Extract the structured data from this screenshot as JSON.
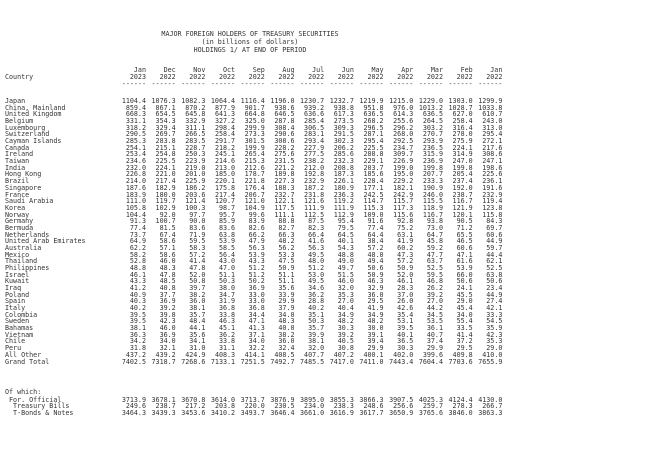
{
  "title": {
    "line1": "MAJOR FOREIGN HOLDERS OF TREASURY SECURITIES",
    "line2": "(in billions of dollars)",
    "line3": "HOLDINGS 1/ AT END OF PERIOD"
  },
  "country_header": "Country",
  "columns": [
    {
      "month": "Jan",
      "year": "2023"
    },
    {
      "month": "Dec",
      "year": "2022"
    },
    {
      "month": "Nov",
      "year": "2022"
    },
    {
      "month": "Oct",
      "year": "2022"
    },
    {
      "month": "Sep",
      "year": "2022"
    },
    {
      "month": "Aug",
      "year": "2022"
    },
    {
      "month": "Jul",
      "year": "2022"
    },
    {
      "month": "Jun",
      "year": "2022"
    },
    {
      "month": "May",
      "year": "2022"
    },
    {
      "month": "Apr",
      "year": "2022"
    },
    {
      "month": "Mar",
      "year": "2022"
    },
    {
      "month": "Feb",
      "year": "2022"
    },
    {
      "month": "Jan",
      "year": "2022"
    }
  ],
  "dash": "------",
  "rows": [
    {
      "country": "Japan",
      "values": [
        "1104.4",
        "1076.3",
        "1082.3",
        "1064.4",
        "1116.4",
        "1196.0",
        "1230.7",
        "1232.7",
        "1219.9",
        "1215.0",
        "1229.0",
        "1303.0",
        "1299.9"
      ]
    },
    {
      "country": "China, Mainland",
      "values": [
        "859.4",
        "867.1",
        "870.2",
        "877.9",
        "901.7",
        "938.6",
        "939.2",
        "938.8",
        "951.8",
        "976.0",
        "1013.2",
        "1028.7",
        "1033.8"
      ]
    },
    {
      "country": "United Kingdom",
      "values": [
        "668.3",
        "654.5",
        "645.8",
        "641.3",
        "664.8",
        "646.5",
        "636.6",
        "617.3",
        "636.5",
        "614.3",
        "636.5",
        "627.0",
        "610.7"
      ]
    },
    {
      "country": "Belgium",
      "values": [
        "331.1",
        "354.3",
        "332.9",
        "327.2",
        "325.0",
        "287.8",
        "285.4",
        "273.5",
        "268.2",
        "255.6",
        "264.5",
        "258.4",
        "243.0"
      ]
    },
    {
      "country": "Luxembourg",
      "values": [
        "318.2",
        "329.4",
        "311.1",
        "298.4",
        "299.9",
        "308.4",
        "306.5",
        "309.3",
        "296.5",
        "296.2",
        "303.2",
        "316.4",
        "313.0"
      ]
    },
    {
      "country": "Switzerland",
      "values": [
        "290.5",
        "269.7",
        "266.5",
        "258.4",
        "273.3",
        "290.6",
        "283.1",
        "291.5",
        "287.1",
        "268.0",
        "270.7",
        "278.0",
        "295.4"
      ]
    },
    {
      "country": "Cayman Islands",
      "values": [
        "285.3",
        "283.8",
        "283.5",
        "291.7",
        "301.5",
        "308.6",
        "293.4",
        "302.3",
        "295.4",
        "292.5",
        "293.9",
        "275.9",
        "272.1"
      ]
    },
    {
      "country": "Canada",
      "values": [
        "254.1",
        "215.1",
        "228.7",
        "218.2",
        "199.9",
        "228.2",
        "227.9",
        "206.2",
        "225.5",
        "234.7",
        "236.5",
        "224.1",
        "217.6"
      ]
    },
    {
      "country": "Ireland",
      "values": [
        "253.4",
        "254.8",
        "250.3",
        "245.1",
        "265.4",
        "275.6",
        "277.5",
        "285.6",
        "288.8",
        "309.7",
        "315.9",
        "314.9",
        "308.6"
      ]
    },
    {
      "country": "Taiwan",
      "values": [
        "234.6",
        "225.5",
        "223.9",
        "214.6",
        "215.3",
        "231.5",
        "238.2",
        "232.3",
        "229.1",
        "226.9",
        "236.9",
        "247.0",
        "247.1"
      ]
    },
    {
      "country": "India",
      "values": [
        "232.0",
        "224.1",
        "219.0",
        "213.0",
        "212.6",
        "221.2",
        "212.0",
        "208.8",
        "203.7",
        "199.0",
        "199.8",
        "199.8",
        "198.6"
      ]
    },
    {
      "country": "Hong Kong",
      "values": [
        "226.8",
        "221.0",
        "201.0",
        "185.0",
        "178.7",
        "189.8",
        "192.8",
        "187.3",
        "185.6",
        "195.0",
        "207.7",
        "205.4",
        "225.6"
      ]
    },
    {
      "country": "Brazil",
      "values": [
        "214.0",
        "217.4",
        "225.9",
        "220.1",
        "221.8",
        "227.3",
        "232.9",
        "226.1",
        "228.4",
        "229.2",
        "233.3",
        "237.4",
        "236.1"
      ]
    },
    {
      "country": "Singapore",
      "values": [
        "187.6",
        "182.9",
        "186.2",
        "175.8",
        "176.4",
        "188.3",
        "187.2",
        "180.9",
        "177.1",
        "182.1",
        "190.9",
        "192.0",
        "191.6"
      ]
    },
    {
      "country": "France",
      "values": [
        "183.9",
        "180.0",
        "203.6",
        "217.4",
        "206.7",
        "232.7",
        "231.8",
        "236.3",
        "242.5",
        "242.9",
        "246.0",
        "238.7",
        "232.9"
      ]
    },
    {
      "country": "Saudi Arabia",
      "values": [
        "111.0",
        "119.7",
        "121.4",
        "120.7",
        "121.0",
        "122.1",
        "121.6",
        "119.2",
        "114.7",
        "115.7",
        "115.5",
        "116.7",
        "119.4"
      ]
    },
    {
      "country": "Korea",
      "values": [
        "105.8",
        "102.9",
        "100.3",
        "98.7",
        "104.9",
        "117.5",
        "111.9",
        "111.9",
        "115.3",
        "117.3",
        "118.9",
        "121.9",
        "123.8"
      ]
    },
    {
      "country": "Norway",
      "values": [
        "104.4",
        "92.0",
        "97.7",
        "95.7",
        "99.6",
        "111.1",
        "112.5",
        "112.9",
        "109.0",
        "115.6",
        "116.7",
        "120.1",
        "115.8"
      ]
    },
    {
      "country": "Germany",
      "values": [
        "91.3",
        "100.7",
        "90.0",
        "85.9",
        "83.9",
        "88.8",
        "87.5",
        "95.4",
        "91.6",
        "92.8",
        "93.8",
        "90.5",
        "84.3"
      ]
    },
    {
      "country": "Bermuda",
      "values": [
        "77.4",
        "81.5",
        "83.6",
        "83.6",
        "82.6",
        "82.7",
        "82.3",
        "79.5",
        "77.4",
        "75.2",
        "73.0",
        "71.2",
        "69.7"
      ]
    },
    {
      "country": "Netherlands",
      "values": [
        "73.7",
        "67.4",
        "71.9",
        "63.8",
        "66.2",
        "66.3",
        "66.4",
        "64.5",
        "64.4",
        "63.1",
        "64.7",
        "65.5",
        "60.6"
      ]
    },
    {
      "country": "United Arab Emirates",
      "values": [
        "64.9",
        "58.6",
        "59.5",
        "53.9",
        "47.9",
        "48.2",
        "41.6",
        "40.1",
        "38.4",
        "41.9",
        "45.8",
        "46.5",
        "44.9"
      ]
    },
    {
      "country": "Australia",
      "values": [
        "62.2",
        "57.1",
        "58.3",
        "58.5",
        "56.3",
        "56.2",
        "56.3",
        "54.3",
        "57.2",
        "60.2",
        "59.2",
        "60.6",
        "59.7"
      ]
    },
    {
      "country": "Mexico",
      "values": [
        "58.2",
        "58.6",
        "57.2",
        "56.4",
        "53.9",
        "53.3",
        "49.5",
        "48.8",
        "48.0",
        "47.3",
        "47.7",
        "47.1",
        "44.4"
      ]
    },
    {
      "country": "Thailand",
      "values": [
        "52.8",
        "46.0",
        "41.4",
        "43.0",
        "43.3",
        "47.5",
        "48.0",
        "49.0",
        "49.4",
        "57.2",
        "63.7",
        "61.6",
        "62.1"
      ]
    },
    {
      "country": "Philippines",
      "values": [
        "48.8",
        "48.3",
        "47.8",
        "47.0",
        "51.2",
        "50.9",
        "51.2",
        "49.7",
        "50.6",
        "50.9",
        "52.5",
        "53.9",
        "52.5"
      ]
    },
    {
      "country": "Israel",
      "values": [
        "46.1",
        "47.8",
        "52.0",
        "51.1",
        "51.2",
        "51.1",
        "53.0",
        "51.5",
        "50.9",
        "52.0",
        "59.5",
        "66.0",
        "63.8"
      ]
    },
    {
      "country": "Kuwait",
      "values": [
        "43.3",
        "48.5",
        "50.8",
        "50.3",
        "50.2",
        "51.1",
        "49.5",
        "46.0",
        "46.3",
        "46.1",
        "46.8",
        "50.6",
        "50.6"
      ]
    },
    {
      "country": "Iraq",
      "values": [
        "41.2",
        "40.8",
        "39.7",
        "38.0",
        "36.9",
        "35.6",
        "34.6",
        "32.0",
        "32.9",
        "28.3",
        "26.2",
        "24.1",
        "23.4"
      ]
    },
    {
      "country": "Poland",
      "values": [
        "40.9",
        "37.7",
        "38.2",
        "34.7",
        "33.0",
        "33.9",
        "36.2",
        "35.3",
        "36.0",
        "37.0",
        "39.2",
        "45.5",
        "44.9"
      ]
    },
    {
      "country": "Spain",
      "values": [
        "40.3",
        "36.9",
        "36.0",
        "31.9",
        "33.0",
        "29.9",
        "28.8",
        "27.0",
        "29.5",
        "26.0",
        "27.0",
        "29.0",
        "27.4"
      ]
    },
    {
      "country": "Italy",
      "values": [
        "40.2",
        "39.2",
        "38.1",
        "36.8",
        "36.8",
        "37.9",
        "40.2",
        "40.4",
        "41.9",
        "42.6",
        "44.2",
        "45.4",
        "42.1"
      ]
    },
    {
      "country": "Colombia",
      "values": [
        "39.5",
        "39.8",
        "35.7",
        "33.8",
        "34.4",
        "34.0",
        "35.1",
        "34.9",
        "34.9",
        "35.4",
        "34.5",
        "34.0",
        "33.3"
      ]
    },
    {
      "country": "Sweden",
      "values": [
        "39.5",
        "42.3",
        "48.4",
        "46.3",
        "47.1",
        "48.3",
        "50.3",
        "48.2",
        "48.2",
        "53.1",
        "53.5",
        "55.4",
        "54.5"
      ]
    },
    {
      "country": "Bahamas",
      "values": [
        "38.1",
        "46.0",
        "44.1",
        "45.1",
        "41.3",
        "40.0",
        "35.7",
        "30.3",
        "30.0",
        "39.5",
        "36.1",
        "33.5",
        "35.9"
      ]
    },
    {
      "country": "Vietnam",
      "values": [
        "36.3",
        "36.9",
        "35.6",
        "36.2",
        "37.1",
        "38.2",
        "39.9",
        "39.2",
        "39.1",
        "40.1",
        "40.7",
        "41.4",
        "42.3"
      ]
    },
    {
      "country": "Chile",
      "values": [
        "34.2",
        "34.0",
        "34.1",
        "33.8",
        "34.0",
        "36.0",
        "38.1",
        "40.5",
        "39.4",
        "36.5",
        "37.4",
        "37.2",
        "35.3"
      ]
    },
    {
      "country": "Peru",
      "values": [
        "31.8",
        "32.1",
        "31.0",
        "31.1",
        "32.2",
        "32.4",
        "32.0",
        "30.8",
        "29.9",
        "30.3",
        "29.9",
        "29.5",
        "29.0"
      ]
    },
    {
      "country": "All Other",
      "values": [
        "437.2",
        "439.2",
        "424.9",
        "408.3",
        "414.1",
        "408.5",
        "407.7",
        "407.2",
        "400.1",
        "402.0",
        "399.6",
        "409.8",
        "410.0"
      ]
    },
    {
      "country": "Grand Total",
      "values": [
        "7402.5",
        "7318.7",
        "7268.6",
        "7133.1",
        "7251.5",
        "7492.7",
        "7485.5",
        "7417.0",
        "7411.0",
        "7443.4",
        "7604.4",
        "7703.6",
        "7655.9"
      ]
    }
  ],
  "of_which_label": "Of which:",
  "of_which": [
    {
      "country": " For. Official",
      "values": [
        "3713.9",
        "3678.1",
        "3670.8",
        "3614.0",
        "3713.7",
        "3876.9",
        "3895.0",
        "3855.3",
        "3866.3",
        "3907.5",
        "4025.3",
        "4124.4",
        "4130.0"
      ]
    },
    {
      "country": "  Treasury Bills",
      "values": [
        "249.6",
        "238.7",
        "217.2",
        "203.8",
        "220.0",
        "230.5",
        "234.0",
        "238.3",
        "248.6",
        "256.6",
        "259.7",
        "278.3",
        "266.7"
      ]
    },
    {
      "country": "  T-Bonds & Notes",
      "values": [
        "3464.3",
        "3439.3",
        "3453.6",
        "3410.2",
        "3493.7",
        "3646.4",
        "3661.0",
        "3616.9",
        "3617.7",
        "3650.9",
        "3765.6",
        "3846.0",
        "3863.3"
      ]
    }
  ]
}
